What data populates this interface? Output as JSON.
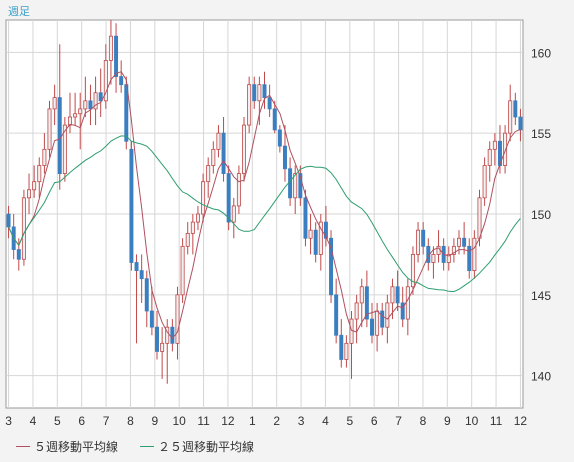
{
  "chart_data": {
    "type": "candlestick",
    "period_label": "週足",
    "ylim": [
      138,
      162
    ],
    "yticks": [
      140,
      145,
      150,
      155,
      160
    ],
    "month_ticks": [
      "3",
      "4",
      "5",
      "6",
      "7",
      "8",
      "9",
      "10",
      "11",
      "12",
      "1",
      "2",
      "3",
      "4",
      "5",
      "6",
      "7",
      "8",
      "9",
      "10",
      "11",
      "12"
    ],
    "grid": true,
    "legend": [
      {
        "key": "ma5",
        "label": "５週移動平均線",
        "color": "#b05060"
      },
      {
        "key": "ma25",
        "label": "２５週移動平均線",
        "color": "#2e9e6e"
      }
    ],
    "colors": {
      "up": "#f0f0f0",
      "down": "#3b7fc0",
      "edge": "#c04848",
      "wick": "#c04848"
    },
    "candles": [
      [
        150.0,
        150.5,
        148.5,
        149.2
      ],
      [
        149.2,
        150.0,
        147.2,
        147.8
      ],
      [
        147.8,
        148.5,
        146.5,
        147.2
      ],
      [
        147.2,
        151.5,
        146.8,
        151.0
      ],
      [
        151.0,
        152.5,
        150.0,
        151.5
      ],
      [
        151.5,
        153.0,
        151.0,
        152.0
      ],
      [
        152.0,
        153.5,
        151.0,
        153.0
      ],
      [
        153.0,
        155.0,
        152.5,
        154.0
      ],
      [
        154.0,
        157.0,
        153.5,
        156.5
      ],
      [
        156.5,
        158.0,
        155.5,
        157.2
      ],
      [
        157.2,
        160.5,
        151.5,
        152.5
      ],
      [
        152.5,
        156.0,
        152.0,
        155.5
      ],
      [
        155.5,
        157.5,
        155.0,
        156.0
      ],
      [
        156.0,
        157.5,
        155.5,
        156.2
      ],
      [
        156.2,
        157.5,
        154.0,
        156.5
      ],
      [
        156.5,
        158.5,
        156.0,
        157.0
      ],
      [
        157.0,
        158.0,
        155.5,
        156.5
      ],
      [
        156.5,
        158.5,
        155.5,
        157.5
      ],
      [
        157.5,
        159.0,
        156.0,
        157.0
      ],
      [
        157.0,
        160.5,
        156.5,
        159.5
      ],
      [
        159.5,
        162.0,
        158.0,
        161.0
      ],
      [
        161.0,
        161.8,
        157.5,
        158.5
      ],
      [
        158.5,
        159.5,
        157.5,
        158.0
      ],
      [
        158.0,
        158.5,
        154.0,
        154.5
      ],
      [
        154.0,
        154.5,
        146.5,
        147.0
      ],
      [
        147.0,
        147.5,
        142.0,
        146.5
      ],
      [
        146.5,
        147.5,
        144.5,
        146.0
      ],
      [
        146.0,
        146.5,
        143.0,
        144.0
      ],
      [
        144.0,
        145.5,
        142.5,
        143.0
      ],
      [
        143.0,
        144.0,
        141.0,
        141.5
      ],
      [
        141.5,
        143.0,
        139.8,
        142.0
      ],
      [
        142.0,
        143.5,
        139.5,
        143.0
      ],
      [
        143.0,
        143.5,
        141.5,
        142.0
      ],
      [
        142.0,
        145.5,
        141.0,
        145.0
      ],
      [
        145.0,
        148.5,
        144.5,
        148.0
      ],
      [
        148.0,
        149.5,
        147.5,
        148.8
      ],
      [
        148.8,
        150.0,
        147.5,
        149.5
      ],
      [
        149.5,
        150.5,
        149.0,
        150.0
      ],
      [
        150.0,
        152.5,
        149.5,
        152.0
      ],
      [
        152.0,
        153.5,
        151.0,
        153.0
      ],
      [
        153.0,
        154.5,
        152.5,
        154.0
      ],
      [
        154.0,
        155.5,
        153.5,
        155.0
      ],
      [
        155.0,
        156.0,
        152.0,
        152.5
      ],
      [
        152.5,
        153.0,
        149.0,
        149.5
      ],
      [
        149.5,
        151.0,
        148.5,
        150.5
      ],
      [
        150.5,
        153.0,
        150.0,
        152.5
      ],
      [
        152.5,
        156.0,
        152.0,
        155.5
      ],
      [
        155.5,
        158.5,
        155.0,
        158.0
      ],
      [
        158.0,
        158.5,
        156.5,
        157.0
      ],
      [
        157.0,
        158.5,
        155.5,
        158.0
      ],
      [
        158.0,
        158.8,
        156.5,
        157.2
      ],
      [
        157.2,
        158.0,
        156.0,
        156.5
      ],
      [
        156.5,
        157.0,
        155.0,
        155.2
      ],
      [
        155.2,
        155.5,
        153.8,
        154.2
      ],
      [
        154.2,
        155.5,
        152.0,
        152.8
      ],
      [
        152.8,
        153.5,
        150.5,
        151.0
      ],
      [
        151.0,
        153.0,
        150.0,
        152.5
      ],
      [
        152.5,
        153.0,
        150.5,
        151.0
      ],
      [
        151.0,
        151.5,
        148.0,
        148.5
      ],
      [
        148.5,
        150.0,
        147.5,
        149.0
      ],
      [
        149.0,
        149.5,
        147.0,
        147.5
      ],
      [
        147.5,
        150.0,
        146.5,
        149.5
      ],
      [
        149.5,
        150.5,
        148.0,
        148.5
      ],
      [
        148.5,
        149.0,
        144.5,
        145.0
      ],
      [
        145.0,
        146.0,
        142.0,
        142.5
      ],
      [
        142.5,
        143.5,
        140.5,
        141.0
      ],
      [
        141.0,
        142.5,
        140.5,
        142.0
      ],
      [
        142.0,
        144.0,
        139.8,
        143.5
      ],
      [
        143.5,
        145.0,
        142.0,
        144.5
      ],
      [
        144.5,
        146.0,
        143.0,
        145.5
      ],
      [
        145.5,
        146.5,
        143.0,
        143.5
      ],
      [
        143.5,
        144.5,
        142.0,
        142.5
      ],
      [
        142.5,
        144.5,
        141.5,
        144.0
      ],
      [
        144.0,
        144.5,
        142.5,
        143.0
      ],
      [
        143.0,
        145.0,
        142.0,
        144.5
      ],
      [
        144.5,
        146.0,
        143.5,
        145.5
      ],
      [
        145.5,
        146.5,
        144.0,
        144.5
      ],
      [
        144.5,
        145.5,
        143.0,
        143.5
      ],
      [
        143.5,
        146.0,
        142.5,
        145.5
      ],
      [
        145.5,
        148.0,
        145.0,
        147.5
      ],
      [
        147.5,
        149.5,
        147.0,
        149.0
      ],
      [
        149.0,
        149.5,
        147.5,
        148.0
      ],
      [
        148.0,
        148.5,
        146.5,
        147.0
      ],
      [
        147.0,
        148.0,
        146.0,
        147.5
      ],
      [
        147.5,
        149.0,
        147.0,
        148.0
      ],
      [
        148.0,
        148.5,
        146.5,
        147.0
      ],
      [
        147.0,
        148.0,
        146.5,
        147.5
      ],
      [
        147.5,
        148.5,
        147.0,
        148.0
      ],
      [
        148.0,
        149.0,
        147.5,
        148.5
      ],
      [
        148.5,
        149.5,
        147.5,
        148.0
      ],
      [
        148.0,
        148.5,
        146.0,
        146.5
      ],
      [
        146.5,
        149.0,
        146.0,
        148.5
      ],
      [
        148.5,
        151.5,
        148.0,
        151.0
      ],
      [
        151.0,
        153.5,
        150.5,
        153.0
      ],
      [
        153.0,
        154.5,
        152.0,
        154.0
      ],
      [
        154.0,
        155.0,
        153.0,
        154.5
      ],
      [
        154.5,
        155.5,
        152.5,
        153.0
      ],
      [
        153.0,
        155.5,
        152.5,
        155.0
      ],
      [
        155.0,
        158.0,
        154.5,
        157.0
      ],
      [
        157.0,
        157.5,
        155.5,
        156.0
      ],
      [
        156.0,
        156.5,
        154.5,
        155.2
      ]
    ]
  }
}
